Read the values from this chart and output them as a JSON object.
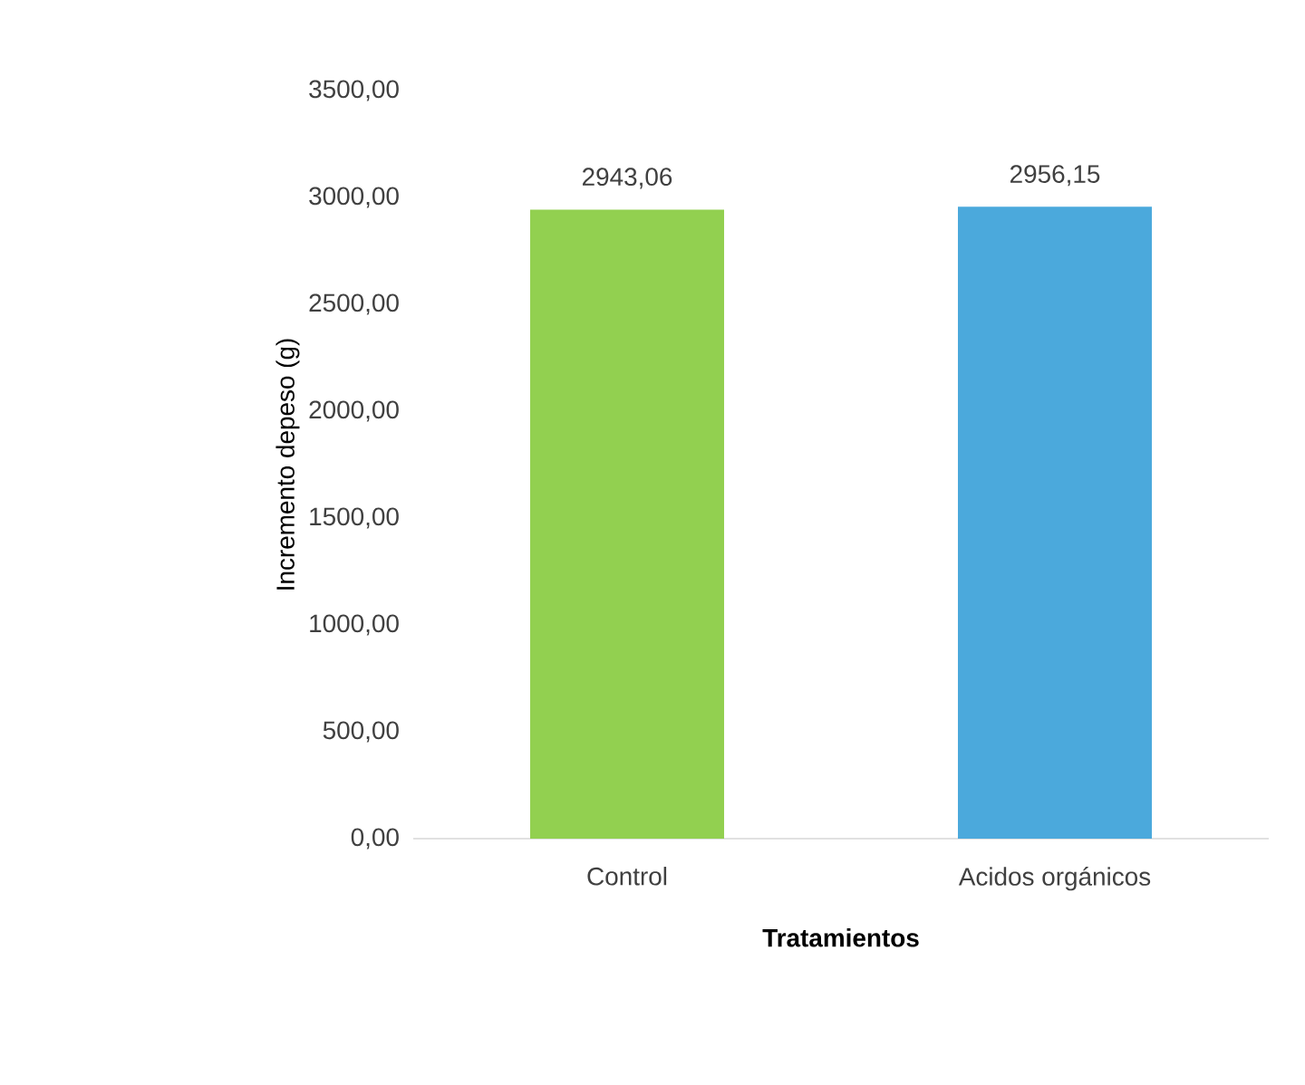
{
  "chart_data": {
    "type": "bar",
    "xlabel": "Tratamientos",
    "ylabel": "Incremento depeso (g)",
    "categories": [
      "Control",
      "Acidos orgánicos"
    ],
    "values": [
      2943.06,
      2956.15
    ],
    "colors": [
      "#92d050",
      "#4ba9dc"
    ],
    "value_labels": [
      "2943,06",
      "2956,15"
    ],
    "ylim": [
      0,
      3500
    ],
    "yticks": [
      {
        "value": 0,
        "label": "0,00"
      },
      {
        "value": 500,
        "label": "500,00"
      },
      {
        "value": 1000,
        "label": "1000,00"
      },
      {
        "value": 1500,
        "label": "1500,00"
      },
      {
        "value": 2000,
        "label": "2000,00"
      },
      {
        "value": 2500,
        "label": "2500,00"
      },
      {
        "value": 3000,
        "label": "3000,00"
      },
      {
        "value": 3500,
        "label": "3500,00"
      }
    ],
    "grid": false
  }
}
